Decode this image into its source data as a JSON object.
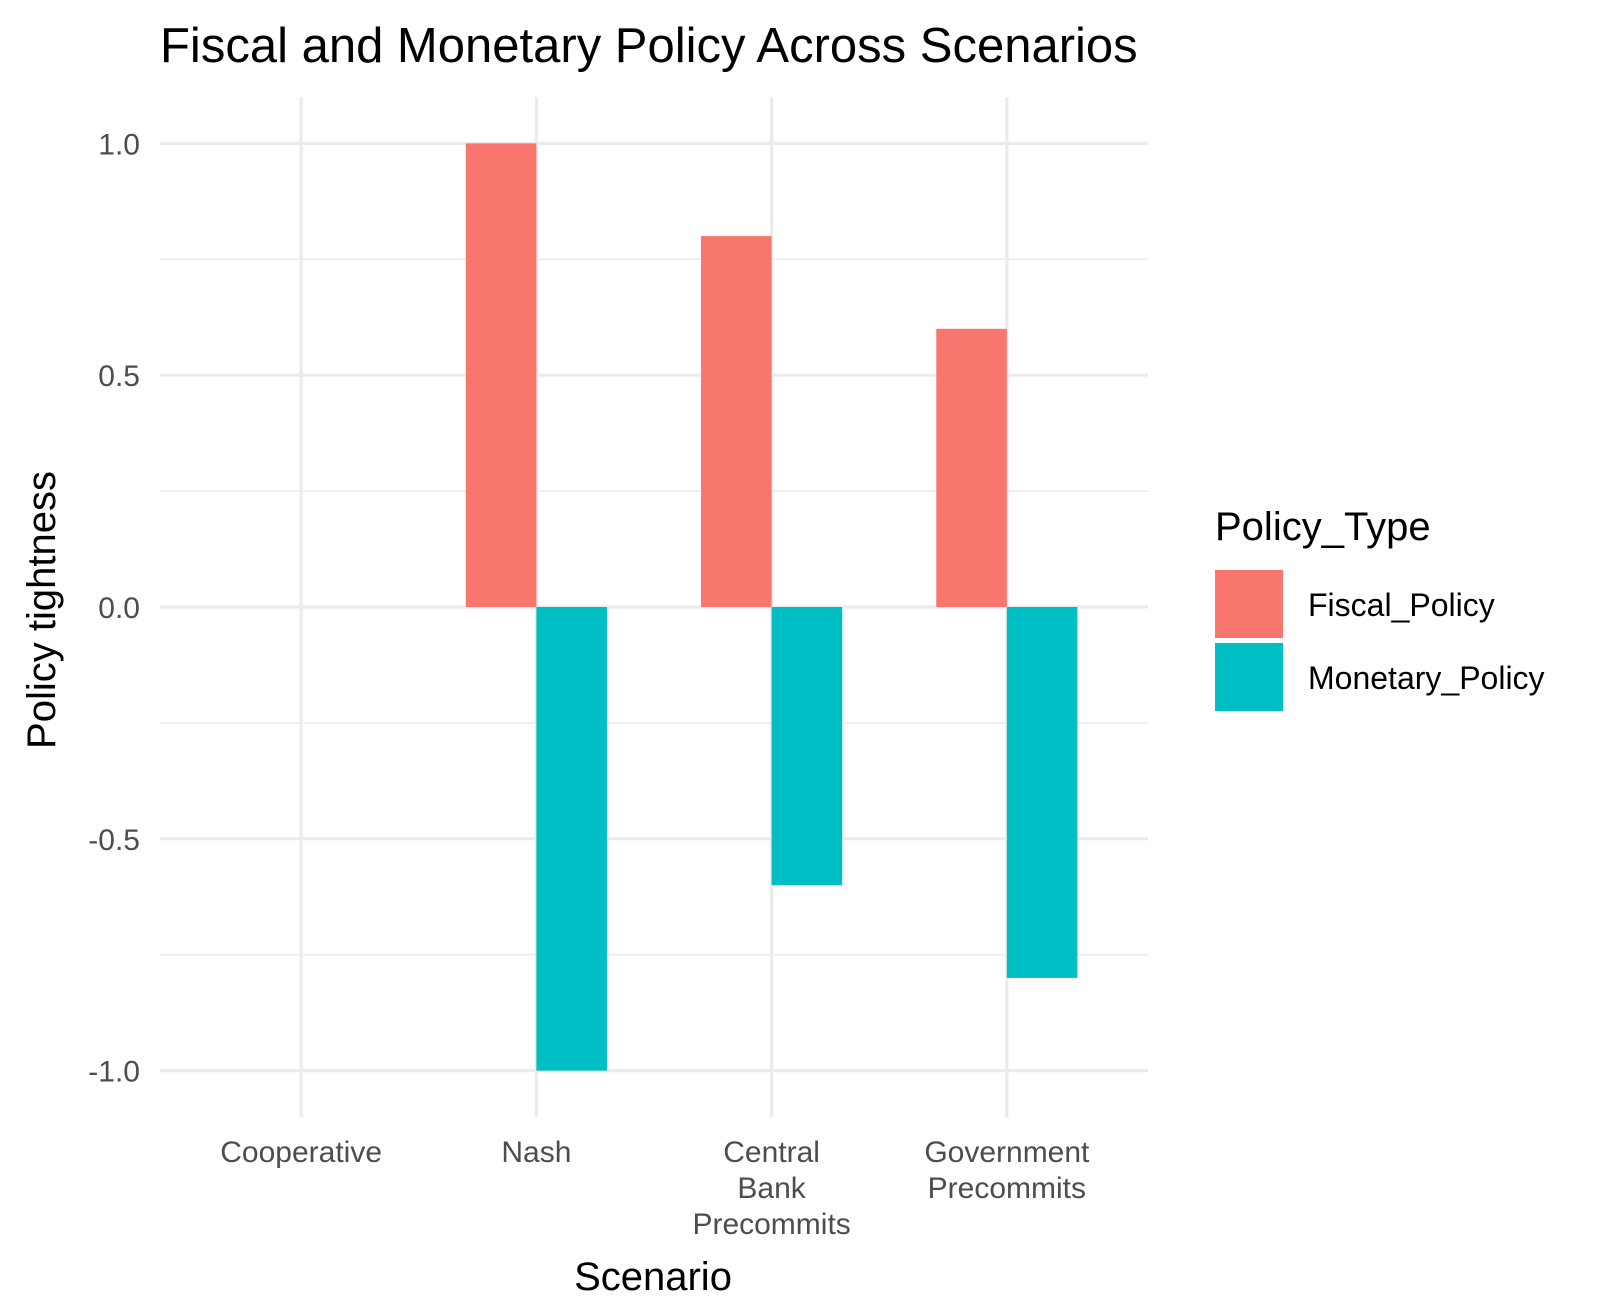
{
  "chart_data": {
    "type": "bar",
    "title": "Fiscal and Monetary Policy Across Scenarios",
    "xlabel": "Scenario",
    "ylabel": "Policy tightness",
    "categories": [
      [
        "Cooperative"
      ],
      [
        "Nash"
      ],
      [
        "Central",
        "Bank",
        "Precommits"
      ],
      [
        "Government",
        "Precommits"
      ]
    ],
    "series": [
      {
        "name": "Fiscal_Policy",
        "color": "#F8766D",
        "values": [
          0,
          1.0,
          0.8,
          0.6
        ]
      },
      {
        "name": "Monetary_Policy",
        "color": "#00BFC4",
        "values": [
          0,
          -1.0,
          -0.6,
          -0.8
        ]
      }
    ],
    "ylim": [
      -1.1,
      1.1
    ],
    "yticks": [
      {
        "value": -1.0,
        "label": "-1.0"
      },
      {
        "value": -0.5,
        "label": "-0.5"
      },
      {
        "value": 0.0,
        "label": "0.0"
      },
      {
        "value": 0.5,
        "label": "0.5"
      },
      {
        "value": 1.0,
        "label": "1.0"
      }
    ],
    "legend": {
      "title": "Policy_Type",
      "position": "right"
    },
    "grid": true
  }
}
